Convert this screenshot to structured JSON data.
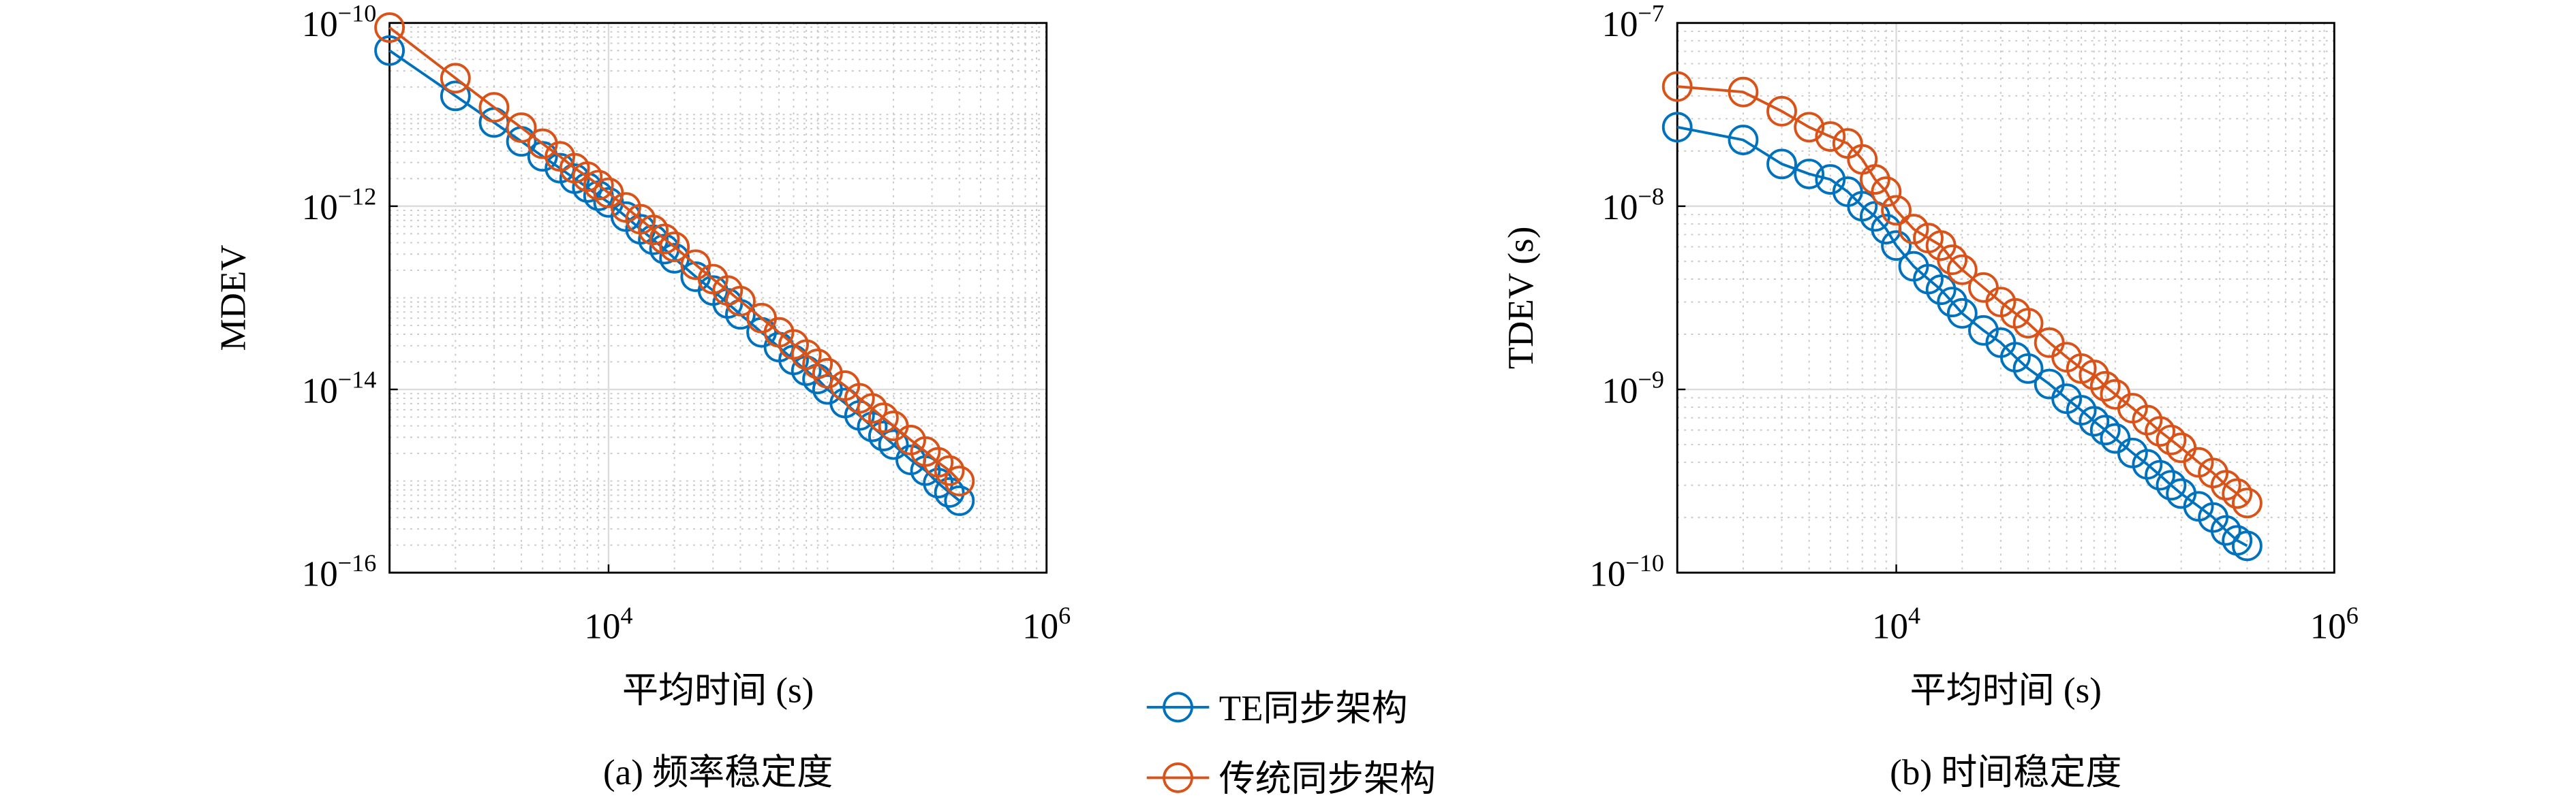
{
  "chart_data": [
    {
      "type": "line",
      "xlabel": "平均时间 (s)",
      "ylabel": "MDEV",
      "caption": "(a) 频率稳定度",
      "xlog": true,
      "ylog": true,
      "grid": true,
      "xlim": [
        1000,
        1000000
      ],
      "ylim": [
        1e-16,
        1e-10
      ],
      "xticks": [
        {
          "value": 10000,
          "label": "10",
          "exponent": "4"
        },
        {
          "value": 1000000,
          "label": "10",
          "exponent": "6"
        }
      ],
      "yticks": [
        {
          "value": 1e-16,
          "label": "10",
          "exponent": "−16"
        },
        {
          "value": 1e-14,
          "label": "10",
          "exponent": "−14"
        },
        {
          "value": 1e-12,
          "label": "10",
          "exponent": "−12"
        },
        {
          "value": 1e-10,
          "label": "10",
          "exponent": "−10"
        }
      ],
      "x": [
        1000,
        2000,
        3000,
        4000,
        5000,
        6000,
        7000,
        8000,
        9000,
        10000,
        12000,
        14000,
        16000,
        18000,
        20000,
        25000,
        30000,
        35000,
        40000,
        50000,
        60000,
        70000,
        80000,
        90000,
        100000,
        120000,
        140000,
        160000,
        180000,
        200000,
        240000,
        280000,
        320000,
        360000,
        400000
      ],
      "series": [
        {
          "name": "TE同步架构",
          "color": "#0072bd",
          "values": [
            5e-11,
            1.6e-11,
            8.2e-12,
            5.1e-12,
            3.5e-12,
            2.6e-12,
            2e-12,
            1.6e-12,
            1.3e-12,
            1.1e-12,
            7.7e-13,
            5.6e-13,
            4.3e-13,
            3.4e-13,
            2.7e-13,
            1.7e-13,
            1.2e-13,
            8.7e-14,
            6.6e-14,
            4.2e-14,
            2.9e-14,
            2.1e-14,
            1.6e-14,
            1.3e-14,
            1e-14,
            7.1e-15,
            5.2e-15,
            3.9e-15,
            3.1e-15,
            2.5e-15,
            1.7e-15,
            1.3e-15,
            9.5e-16,
            7.5e-16,
            6.1e-16
          ]
        },
        {
          "name": "传统同步架构",
          "color": "#d95319",
          "values": [
            8.9e-11,
            2.5e-11,
            1.2e-11,
            7.2e-12,
            4.8e-12,
            3.5e-12,
            2.6e-12,
            2.1e-12,
            1.7e-12,
            1.4e-12,
            9.7e-13,
            7.2e-13,
            5.5e-13,
            4.4e-13,
            3.6e-13,
            2.3e-13,
            1.6e-13,
            1.2e-13,
            9.2e-14,
            6e-14,
            4.2e-14,
            3.1e-14,
            2.4e-14,
            1.9e-14,
            1.5e-14,
            1.1e-14,
            8e-15,
            6.2e-15,
            4.9e-15,
            4e-15,
            2.8e-15,
            2.1e-15,
            1.6e-15,
            1.3e-15,
            1e-15
          ]
        }
      ]
    },
    {
      "type": "line",
      "xlabel": "平均时间 (s)",
      "ylabel": "TDEV (s)",
      "caption": "(b) 时间稳定度",
      "xlog": true,
      "ylog": true,
      "grid": true,
      "xlim": [
        1000,
        1000000
      ],
      "ylim": [
        1e-10,
        1e-07
      ],
      "xticks": [
        {
          "value": 10000,
          "label": "10",
          "exponent": "4"
        },
        {
          "value": 1000000,
          "label": "10",
          "exponent": "6"
        }
      ],
      "yticks": [
        {
          "value": 1e-10,
          "label": "10",
          "exponent": "−10"
        },
        {
          "value": 1e-09,
          "label": "10",
          "exponent": "−9"
        },
        {
          "value": 1e-08,
          "label": "10",
          "exponent": "−8"
        },
        {
          "value": 1e-07,
          "label": "10",
          "exponent": "−7"
        }
      ],
      "x": [
        1000,
        2000,
        3000,
        4000,
        5000,
        6000,
        7000,
        8000,
        9000,
        10000,
        12000,
        14000,
        16000,
        18000,
        20000,
        25000,
        30000,
        35000,
        40000,
        50000,
        60000,
        70000,
        80000,
        90000,
        100000,
        120000,
        140000,
        160000,
        180000,
        200000,
        240000,
        280000,
        320000,
        360000,
        400000
      ],
      "series": [
        {
          "color": "#0072bd",
          "values": [
            2.7e-08,
            2.3e-08,
            1.7e-08,
            1.5e-08,
            1.4e-08,
            1.2e-08,
            1e-08,
            8.8e-09,
            7.5e-09,
            6.1e-09,
            4.7e-09,
            4e-09,
            3.5e-09,
            3e-09,
            2.6e-09,
            2.1e-09,
            1.8e-09,
            1.5e-09,
            1.3e-09,
            1.07e-09,
            8.9e-10,
            7.7e-10,
            6.7e-10,
            6e-10,
            5.4e-10,
            4.5e-10,
            3.9e-10,
            3.4e-10,
            3e-10,
            2.7e-10,
            2.3e-10,
            2e-10,
            1.7e-10,
            1.5e-10,
            1.4e-10
          ]
        },
        {
          "color": "#d95319",
          "values": [
            4.5e-08,
            4.2e-08,
            3.3e-08,
            2.7e-08,
            2.4e-08,
            2.2e-08,
            1.8e-08,
            1.4e-08,
            1.2e-08,
            9.5e-09,
            7.5e-09,
            6.7e-09,
            6.1e-09,
            5.1e-09,
            4.5e-09,
            3.6e-09,
            3e-09,
            2.6e-09,
            2.3e-09,
            1.8e-09,
            1.5e-09,
            1.3e-09,
            1.2e-09,
            1.04e-09,
            9.4e-10,
            7.9e-10,
            6.8e-10,
            5.9e-10,
            5.3e-10,
            4.8e-10,
            4e-10,
            3.5e-10,
            3e-10,
            2.7e-10,
            2.4e-10
          ]
        }
      ]
    }
  ]
}
